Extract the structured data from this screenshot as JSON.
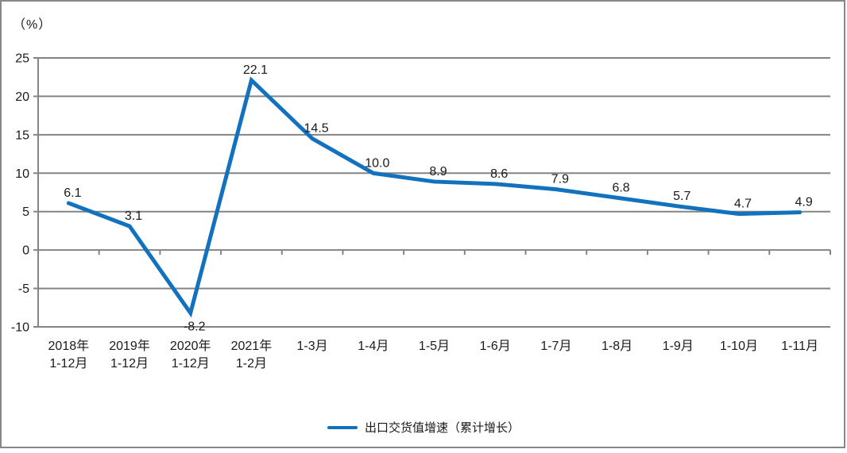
{
  "chart_data": {
    "type": "line",
    "unit_label": "（%）",
    "categories": [
      [
        "2018年",
        "1-12月"
      ],
      [
        "2019年",
        "1-12月"
      ],
      [
        "2020年",
        "1-12月"
      ],
      [
        "2021年",
        "1-2月"
      ],
      [
        "1-3月"
      ],
      [
        "1-4月"
      ],
      [
        "1-5月"
      ],
      [
        "1-6月"
      ],
      [
        "1-7月"
      ],
      [
        "1-8月"
      ],
      [
        "1-9月"
      ],
      [
        "1-10月"
      ],
      [
        "1-11月"
      ]
    ],
    "values": [
      6.1,
      3.1,
      -8.2,
      22.1,
      14.5,
      10.0,
      8.9,
      8.6,
      7.9,
      6.8,
      5.7,
      4.7,
      4.9
    ],
    "value_labels": [
      "6.1",
      "3.1",
      "-8.2",
      "22.1",
      "14.5",
      "10.0",
      "8.9",
      "8.6",
      "7.9",
      "6.8",
      "5.7",
      "4.7",
      "4.9"
    ],
    "yticks": [
      25,
      20,
      15,
      10,
      5,
      0,
      -5,
      -10
    ],
    "ylim": [
      -10,
      25
    ],
    "grid": true,
    "legend": {
      "label": "出口交货值增速（累计增长）",
      "position": "bottom"
    },
    "colors": {
      "series": "#1272BE",
      "grid": "#848484",
      "text": "#1a1a1a",
      "frame_border": "#878787"
    }
  }
}
